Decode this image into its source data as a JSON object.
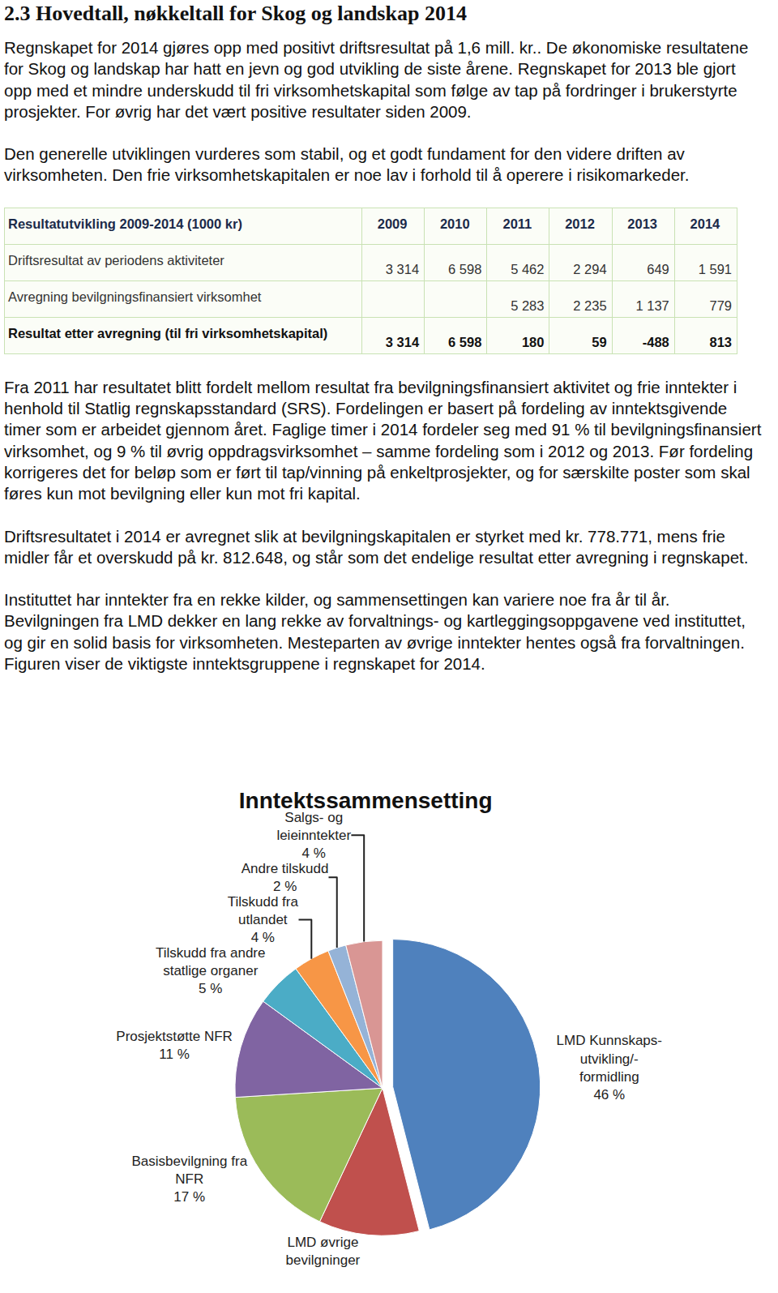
{
  "heading": "2.3 Hovedtall, nøkkeltall for Skog og landskap 2014",
  "paragraphs_before_table": [
    "Regnskapet for 2014 gjøres opp med positivt driftsresultat på 1,6 mill. kr.. De økonomiske resultatene for Skog og landskap har hatt en jevn og god utvikling de siste årene. Regnskapet for 2013 ble gjort opp med et mindre underskudd til fri virksomhetskapital som følge av tap på fordringer i brukerstyrte prosjekter. For øvrig har det vært positive resultater siden 2009.",
    "Den generelle utviklingen vurderes som stabil, og et godt fundament for den videre driften av virksomheten. Den frie virksomhetskapitalen er noe lav i forhold til å operere i risikomarkeder."
  ],
  "table": {
    "header": [
      "Resultatutvikling 2009-2014 (1000 kr)",
      "2009",
      "2010",
      "2011",
      "2012",
      "2013",
      "2014"
    ],
    "rows": [
      [
        "Driftsresultat av periodens aktiviteter",
        "3 314",
        "6 598",
        "5 462",
        "2 294",
        "649",
        "1 591"
      ],
      [
        "Avregning bevilgningsfinansiert virksomhet",
        null,
        null,
        "5 283",
        "2 235",
        "1 137",
        "779"
      ],
      [
        "Resultat etter avregning (til fri virksomhetskapital)",
        "3 314",
        "6 598",
        "180",
        "59",
        "-488",
        "813"
      ]
    ]
  },
  "paragraphs_after_table": [
    "Fra 2011 har resultatet blitt fordelt mellom resultat fra bevilgningsfinansiert aktivitet og frie inntekter i henhold til Statlig regnskapsstandard (SRS).  Fordelingen er basert på fordeling av inntektsgivende timer som er arbeidet gjennom året. Faglige timer i 2014 fordeler seg med 91 % til bevilgningsfinansiert virksomhet, og 9 % til øvrig oppdragsvirksomhet – samme fordeling som i 2012 og 2013. Før fordeling korrigeres det for beløp som er ført til tap/vinning på enkeltprosjekter, og for særskilte poster som skal føres kun mot bevilgning eller kun mot fri kapital.",
    "Driftsresultatet i 2014 er avregnet slik at bevilgningskapitalen er styrket med kr. 778.771, mens frie midler får et overskudd på kr. 812.648, og står som det endelige resultat etter avregning i regnskapet.",
    "Instituttet har inntekter fra en rekke kilder, og sammensettingen kan variere noe fra år til år. Bevilgningen fra LMD dekker en lang rekke av forvaltnings- og kartleggingsoppgavene ved instituttet, og gir en solid basis for virksomheten. Mesteparten av øvrige inntekter hentes også fra forvaltningen. Figuren viser de viktigste inntektsgruppene i regnskapet for 2014."
  ],
  "chart_data": {
    "type": "pie",
    "title": "Inntektssammensetting",
    "labels": [
      [
        "LMD Kunnskaps-",
        "utvikling/-",
        "formidling"
      ],
      [
        "LMD øvrige",
        "bevilgninger"
      ],
      [
        "Basisbevilgning fra",
        "NFR"
      ],
      [
        "Prosjektstøtte NFR"
      ],
      [
        "Tilskudd fra andre",
        "statlige organer"
      ],
      [
        "Tilskudd fra",
        "utlandet"
      ],
      [
        "Andre tilskudd"
      ],
      [
        "Salgs- og",
        "leieinntekter"
      ]
    ],
    "values": [
      46,
      11,
      17,
      11,
      5,
      4,
      2,
      4
    ],
    "value_labels": [
      "46 %",
      null,
      "17 %",
      "11 %",
      "5 %",
      "4 %",
      "2 %",
      "4 %"
    ],
    "colors": [
      "#4f81bd",
      "#c0504d",
      "#9bbb59",
      "#8064a2",
      "#4bacc6",
      "#f79646",
      "#95b3d7",
      "#d99694"
    ],
    "data_labels": true
  }
}
